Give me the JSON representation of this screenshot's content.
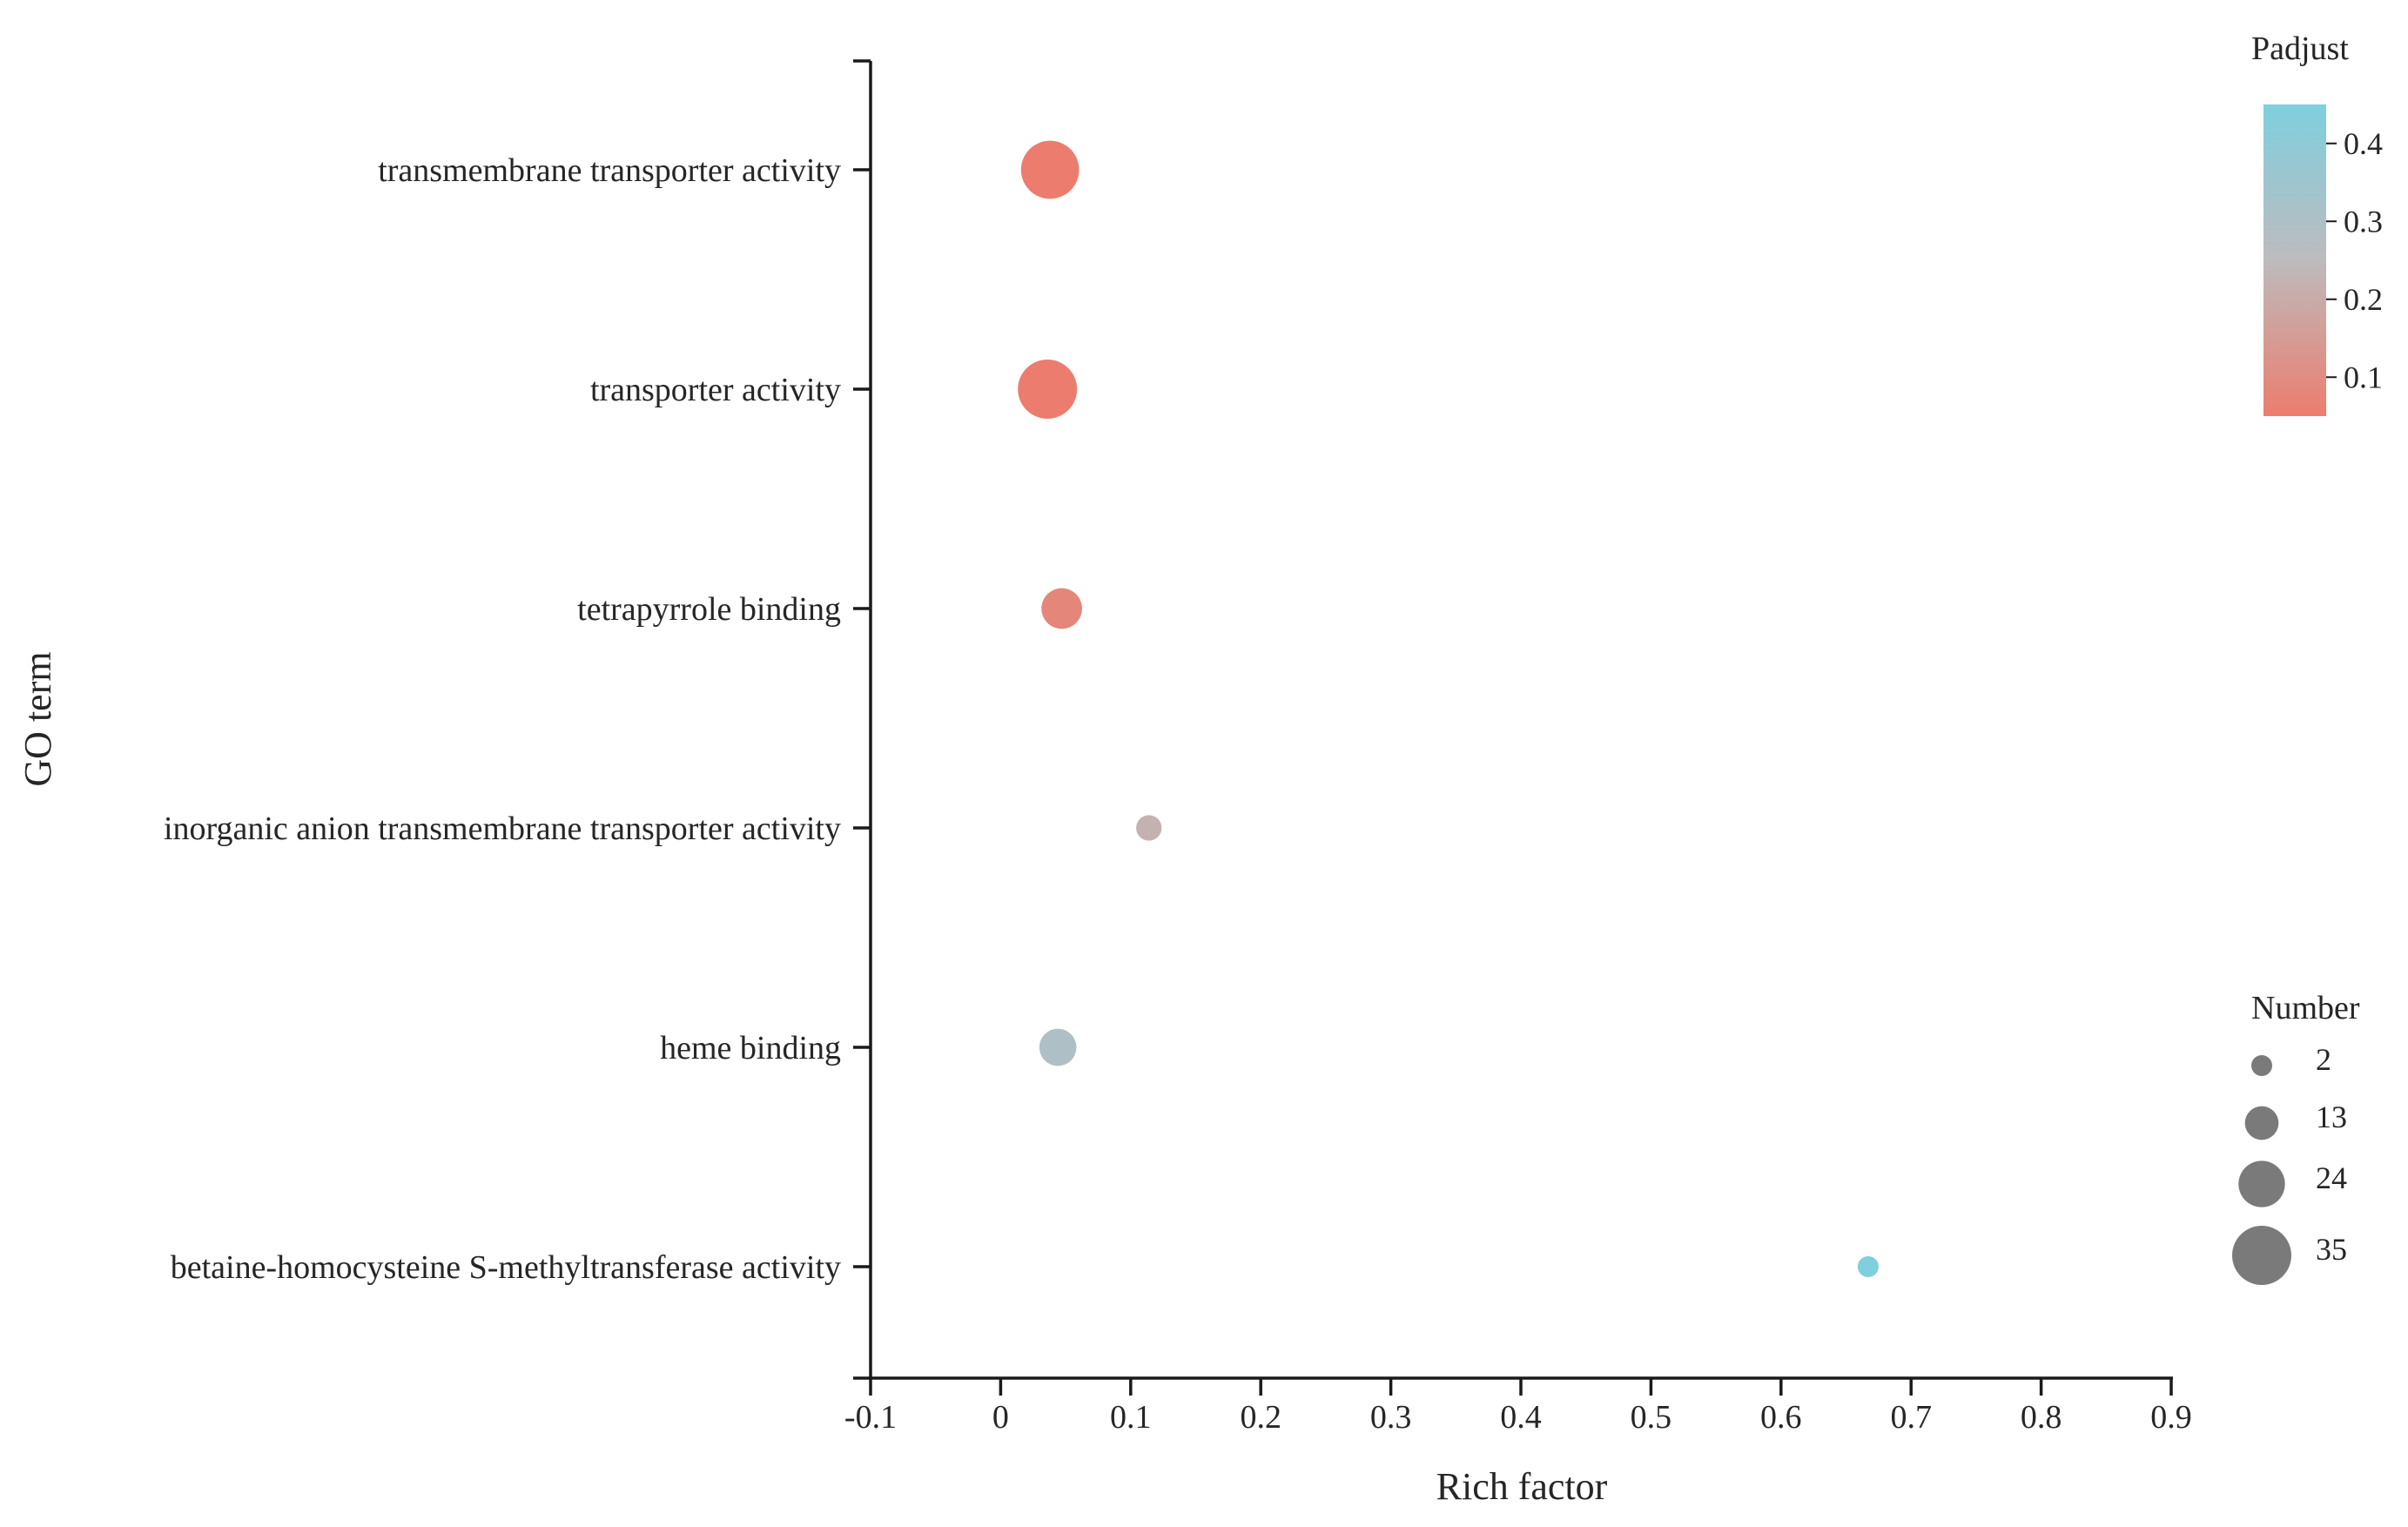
{
  "chart_data": {
    "type": "scatter",
    "xlabel": "Rich factor",
    "ylabel": "GO term",
    "xlim": [
      -0.1,
      0.9
    ],
    "xticks": [
      "-0.1",
      "0",
      "0.1",
      "0.2",
      "0.3",
      "0.4",
      "0.5",
      "0.6",
      "0.7",
      "0.8",
      "0.9"
    ],
    "categories": [
      "transmembrane transporter activity",
      "transporter activity",
      "tetrapyrrole binding",
      "inorganic anion transmembrane transporter activity",
      "heme binding",
      "betaine-homocysteine S-methyltransferase activity"
    ],
    "points": [
      {
        "term": "transmembrane transporter activity",
        "rich_factor": 0.038,
        "number": 34,
        "padjust": 0.05
      },
      {
        "term": "transporter activity",
        "rich_factor": 0.036,
        "number": 35,
        "padjust": 0.05
      },
      {
        "term": "tetrapyrrole binding",
        "rich_factor": 0.047,
        "number": 19,
        "padjust": 0.08
      },
      {
        "term": "inorganic anion transmembrane transporter activity",
        "rich_factor": 0.114,
        "number": 6,
        "padjust": 0.22
      },
      {
        "term": "heme binding",
        "rich_factor": 0.044,
        "number": 16,
        "padjust": 0.3
      },
      {
        "term": "betaine-homocysteine S-methyltransferase activity",
        "rich_factor": 0.667,
        "number": 2,
        "padjust": 0.45
      }
    ],
    "color_legend": {
      "title": "Padjust",
      "ticks": [
        "0.1",
        "0.2",
        "0.3",
        "0.4"
      ],
      "tick_values": [
        0.1,
        0.2,
        0.3,
        0.4
      ],
      "range": [
        0.05,
        0.45
      ],
      "low_color": "#ec7d6e",
      "mid_color": "#bdbbbd",
      "high_color": "#7fcfdf"
    },
    "size_legend": {
      "title": "Number",
      "labels": [
        "2",
        "13",
        "24",
        "35"
      ],
      "values": [
        2,
        13,
        24,
        35
      ]
    },
    "legend_position": "right",
    "grid": false
  }
}
